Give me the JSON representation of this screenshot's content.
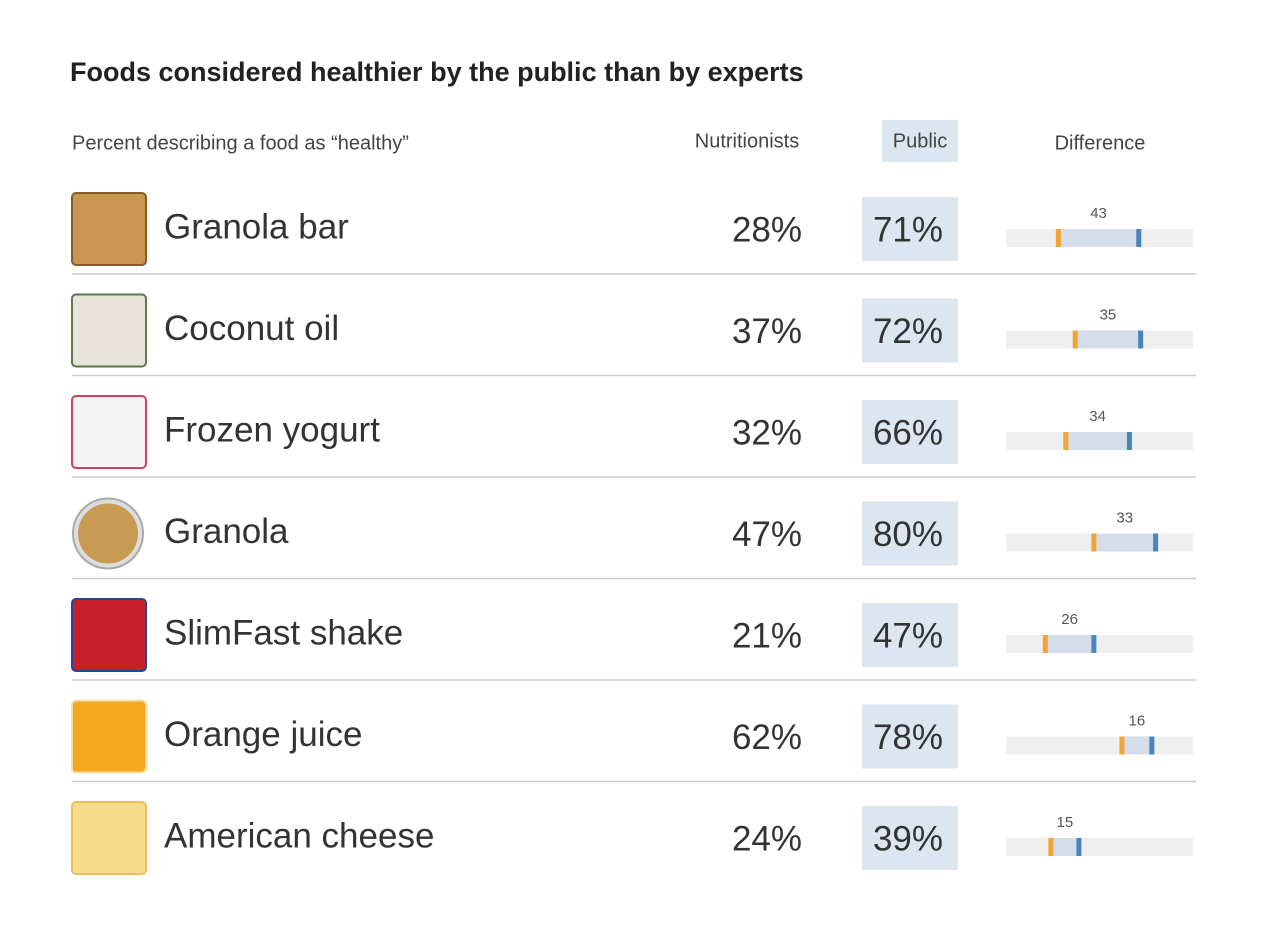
{
  "title": "Foods considered healthier by the public than by experts",
  "header": {
    "subtitle": "Percent describing a food as “healthy”",
    "nutritionists": "Nutritionists",
    "public": "Public",
    "difference": "Difference"
  },
  "scale": [
    0,
    100
  ],
  "colors": {
    "nutritionists": "#f2a531",
    "public": "#4a84bd",
    "span": "#d3deea",
    "track": "#efefef"
  },
  "table": {
    "rows": [
      {
        "food": "Granola bar",
        "nutritionists": 28,
        "nutritionists_label": "28%",
        "public": 71,
        "public_label": "71%",
        "difference": 43
      },
      {
        "food": "Coconut oil",
        "nutritionists": 37,
        "nutritionists_label": "37%",
        "public": 72,
        "public_label": "72%",
        "difference": 35
      },
      {
        "food": "Frozen yogurt",
        "nutritionists": 32,
        "nutritionists_label": "32%",
        "public": 66,
        "public_label": "66%",
        "difference": 34
      },
      {
        "food": "Granola",
        "nutritionists": 47,
        "nutritionists_label": "47%",
        "public": 80,
        "public_label": "80%",
        "difference": 33
      },
      {
        "food": "SlimFast shake",
        "nutritionists": 21,
        "nutritionists_label": "21%",
        "public": 47,
        "public_label": "47%",
        "difference": 26
      },
      {
        "food": "Orange juice",
        "nutritionists": 62,
        "nutritionists_label": "62%",
        "public": 78,
        "public_label": "78%",
        "difference": 16
      },
      {
        "food": "American cheese",
        "nutritionists": 24,
        "nutritionists_label": "24%",
        "public": 39,
        "public_label": "39%",
        "difference": 15
      }
    ]
  }
}
